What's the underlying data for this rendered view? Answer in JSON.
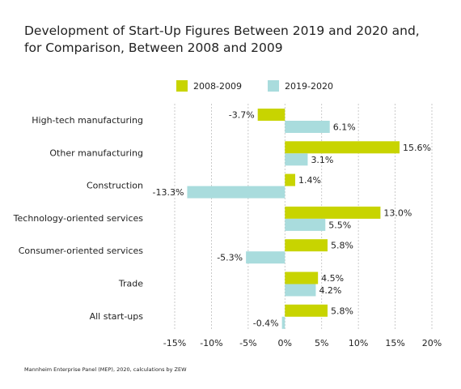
{
  "title_line1": "Development of Start-Up Figures Between 2019 and 2020 and,",
  "title_line2": "for Comparison, Between 2008 and 2009",
  "source": "Mannheim Enterprise Panel (MEP), 2020, calculations by ZEW",
  "colors": {
    "series_2008_2009": "#c8d400",
    "series_2019_2020": "#a9dcdd",
    "grid": "#bdbdbd"
  },
  "chart_data": {
    "type": "bar",
    "orientation": "horizontal",
    "categories": [
      "High-tech manufacturing",
      "Other manufacturing",
      "Construction",
      "Technology-oriented services",
      "Consumer-oriented services",
      "Trade",
      "All start-ups"
    ],
    "series": [
      {
        "name": "2008-2009",
        "values": [
          -3.7,
          15.6,
          1.4,
          13.0,
          5.8,
          4.5,
          5.8
        ],
        "labels": [
          "-3.7%",
          "15.6%",
          "1.4%",
          "13.0%",
          "5.8%",
          "4.5%",
          "5.8%"
        ]
      },
      {
        "name": "2019-2020",
        "values": [
          6.1,
          3.1,
          -13.3,
          5.5,
          -5.3,
          4.2,
          -0.4
        ],
        "labels": [
          "6.1%",
          "3.1%",
          "-13.3%",
          "5.5%",
          "-5.3%",
          "4.2%",
          "-0.4%"
        ]
      }
    ],
    "xlim": [
      -15,
      20
    ],
    "xticks": [
      -15,
      -10,
      -5,
      0,
      5,
      10,
      15,
      20
    ],
    "xtick_labels": [
      "-15%",
      "-10%",
      "-5%",
      "0%",
      "5%",
      "10%",
      "15%",
      "20%"
    ],
    "grid": "vertical dashed",
    "legend_position": "top"
  }
}
